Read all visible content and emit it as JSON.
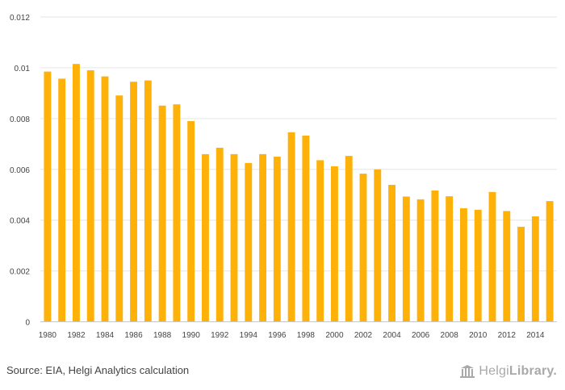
{
  "colors": {
    "bar": "#fdb109",
    "grid": "#e6e6e6",
    "text": "#444444",
    "brand": "#a9a9a9"
  },
  "chart_data": {
    "type": "bar",
    "title": "",
    "xlabel": "",
    "ylabel": "",
    "ylim": [
      0,
      0.012
    ],
    "y_ticks": [
      "0",
      "0.002",
      "0.004",
      "0.006",
      "0.008",
      "0.01",
      "0.012"
    ],
    "y_tick_values": [
      0,
      0.002,
      0.004,
      0.006,
      0.008,
      0.01,
      0.012
    ],
    "categories": [
      "1980",
      "1981",
      "1982",
      "1983",
      "1984",
      "1985",
      "1986",
      "1987",
      "1988",
      "1989",
      "1990",
      "1991",
      "1992",
      "1993",
      "1994",
      "1995",
      "1996",
      "1997",
      "1998",
      "1999",
      "2000",
      "2001",
      "2002",
      "2003",
      "2004",
      "2005",
      "2006",
      "2007",
      "2008",
      "2009",
      "2010",
      "2011",
      "2012",
      "2013",
      "2014",
      "2015"
    ],
    "x_tick_labels": [
      "1980",
      "1982",
      "1984",
      "1986",
      "1988",
      "1990",
      "1992",
      "1994",
      "1996",
      "1998",
      "2000",
      "2002",
      "2004",
      "2006",
      "2008",
      "2010",
      "2012",
      "2014"
    ],
    "values": [
      0.00985,
      0.00957,
      0.01015,
      0.0099,
      0.00966,
      0.00891,
      0.00945,
      0.0095,
      0.00851,
      0.00856,
      0.0079,
      0.0066,
      0.00685,
      0.0066,
      0.00625,
      0.0066,
      0.0065,
      0.00746,
      0.00733,
      0.00636,
      0.00612,
      0.00653,
      0.00583,
      0.006,
      0.00539,
      0.00493,
      0.00482,
      0.00517,
      0.00494,
      0.00447,
      0.00441,
      0.00511,
      0.00436,
      0.00374,
      0.00415,
      0.00475
    ],
    "grid": true,
    "legend": "none"
  },
  "footer": {
    "source": "Source: EIA, Helgi Analytics calculation",
    "brand_light": "Helgi",
    "brand_bold": "Library."
  }
}
